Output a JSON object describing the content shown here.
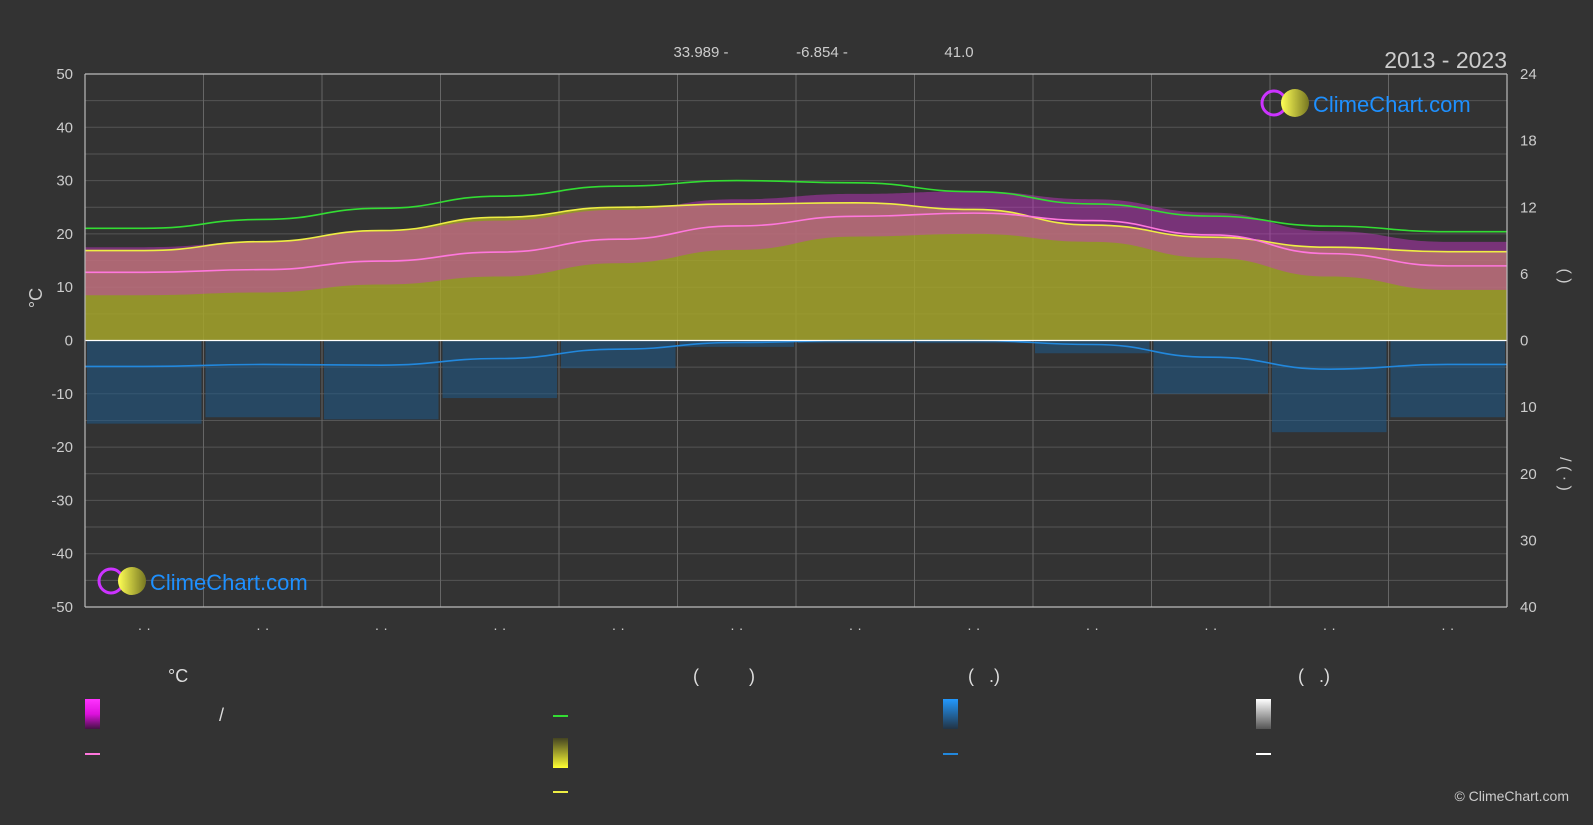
{
  "header": {
    "coords": [
      "33.989 -",
      "-6.854 -",
      "41.0"
    ],
    "year_range": "2013 - 2023"
  },
  "brand": {
    "name": "ClimeChart.com",
    "copyright": "© ClimeChart.com",
    "text_color": "#1e90ff"
  },
  "legend": {
    "temp_header": "°C",
    "sun_header": "(          )",
    "rain_header": "(   .)",
    "snow_header": "(   .)",
    "temp_range_sep": "/"
  },
  "colors": {
    "background": "#333333",
    "temp_band": "#cc33cc",
    "sunshine_band": "#a5a52a",
    "precip_band": "#1e5a8a",
    "daylight_line": "#33dd33",
    "sunshine_line": "#eeee44",
    "mean_temp_line": "#ff77dd",
    "precip_line": "#2288dd",
    "snow_line": "#ffffff"
  },
  "chart_data": {
    "type": "line",
    "months": 12,
    "x": [
      0.5,
      1.5,
      2.5,
      3.5,
      4.5,
      5.5,
      6.5,
      7.5,
      8.5,
      9.5,
      10.5,
      11.5
    ],
    "x_tick_labels": [
      "· ·",
      "· ·",
      "· ·",
      "· ·",
      "· ·",
      "· ·",
      "· ·",
      "· ·",
      "· ·",
      "· ·",
      "· ·",
      "· ·"
    ],
    "y_left": {
      "label": "°C",
      "range": [
        -50,
        50
      ],
      "ticks": [
        50,
        40,
        30,
        20,
        10,
        0,
        -10,
        -20,
        -30,
        -40,
        -50
      ]
    },
    "y_right_top": {
      "range": [
        0,
        24
      ],
      "ticks": [
        24,
        18,
        12,
        6,
        0
      ],
      "label": "(    )"
    },
    "y_right_bottom": {
      "range": [
        0,
        40
      ],
      "ticks": [
        10,
        20,
        30,
        40
      ],
      "label": "/  (  ·  )"
    },
    "series": [
      {
        "key": "daylight",
        "unit": "hours",
        "values": [
          10.1,
          10.9,
          11.9,
          13.0,
          13.9,
          14.4,
          14.2,
          13.4,
          12.3,
          11.2,
          10.3,
          9.8
        ]
      },
      {
        "key": "sunshine",
        "unit": "hours",
        "values": [
          8.1,
          8.9,
          9.9,
          11.1,
          12.0,
          12.3,
          12.4,
          11.8,
          10.4,
          9.3,
          8.4,
          8.0
        ]
      },
      {
        "key": "mean_temp",
        "unit": "°C",
        "values": [
          12.8,
          13.3,
          14.9,
          16.6,
          19.0,
          21.5,
          23.3,
          23.9,
          22.5,
          19.8,
          16.3,
          14.0
        ]
      },
      {
        "key": "temp_max",
        "unit": "°C",
        "values": [
          17.5,
          18.5,
          20.5,
          22.5,
          24.5,
          26.5,
          27.5,
          28.0,
          26.5,
          24.0,
          20.5,
          18.5
        ]
      },
      {
        "key": "temp_min",
        "unit": "°C",
        "values": [
          8.5,
          9.0,
          10.5,
          12.0,
          14.5,
          17.0,
          19.5,
          20.0,
          18.5,
          15.5,
          12.0,
          9.5
        ]
      },
      {
        "key": "precipitation",
        "unit": "mm/day",
        "values": [
          3.9,
          3.6,
          3.7,
          2.7,
          1.3,
          0.3,
          0.0,
          0.0,
          0.6,
          2.5,
          4.3,
          3.6
        ]
      },
      {
        "key": "snow",
        "unit": "mm/day",
        "values": [
          0,
          0,
          0,
          0,
          0,
          0,
          0,
          0,
          0,
          0,
          0,
          0
        ]
      }
    ]
  }
}
